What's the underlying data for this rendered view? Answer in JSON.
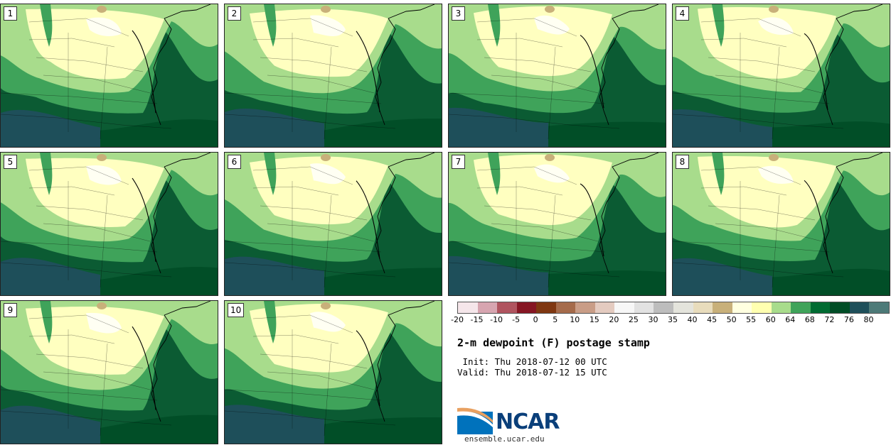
{
  "panels": [
    {
      "label": "1"
    },
    {
      "label": "2"
    },
    {
      "label": "3"
    },
    {
      "label": "4"
    },
    {
      "label": "5"
    },
    {
      "label": "6"
    },
    {
      "label": "7"
    },
    {
      "label": "8"
    },
    {
      "label": "9"
    },
    {
      "label": "10"
    }
  ],
  "colorbar": {
    "colors": [
      "#f5e6ea",
      "#d7a5b0",
      "#b0545f",
      "#861623",
      "#7f3711",
      "#a56b4b",
      "#c99d87",
      "#e4cbc0",
      "#f7f7f7",
      "#e2e2e2",
      "#bdbdbd",
      "#e4e4dc",
      "#e8dcbc",
      "#c8b07a",
      "#ffffe0",
      "#ffffb0",
      "#a8dc8c",
      "#3fa35a",
      "#006b32",
      "#004d26",
      "#1e4f5a",
      "#4d7a78"
    ],
    "ticks": [
      "-20",
      "-15",
      "-10",
      "-5",
      "0",
      "5",
      "10",
      "15",
      "20",
      "25",
      "30",
      "35",
      "40",
      "45",
      "50",
      "55",
      "60",
      "64",
      "68",
      "72",
      "76",
      "80"
    ]
  },
  "title": "2-m dewpoint (F) postage stamp",
  "init_text": " Init: Thu 2018-07-12 00 UTC",
  "valid_text": "Valid: Thu 2018-07-12 15 UTC",
  "logo_text": "NCAR",
  "logo_url": "ensemble.ucar.edu",
  "field_colors": {
    "very_dry": "#ffffff",
    "dry": "#ffffc0",
    "light": "#a8dc8c",
    "medium": "#3fa35a",
    "humid": "#0b5b33",
    "very_humid": "#004d26",
    "extreme": "#1e4f5a",
    "snowcap": "#c8b07a"
  }
}
